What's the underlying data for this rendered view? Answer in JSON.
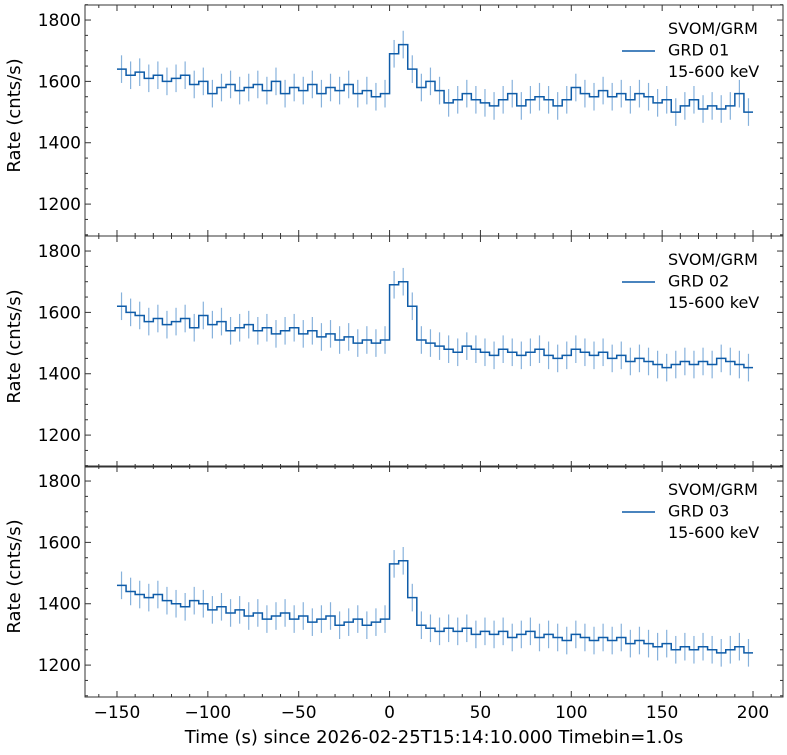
{
  "chart_data": {
    "type": "line",
    "style": "step with error bars",
    "xlabel": "Time (s) since 2026-02-25T15:14:10.000 Timebin=1.0s",
    "xlim": [
      -167.6,
      216.5
    ],
    "xticks": [
      -150,
      -100,
      -50,
      0,
      50,
      100,
      150,
      200
    ],
    "xtick_labels": [
      "−150",
      "−100",
      "−50",
      "0",
      "50",
      "100",
      "150",
      "200"
    ],
    "bin_width_s": 5,
    "x_start": -150,
    "line_color": "#0f5ca8",
    "errorbar_color": "#6a9fd4",
    "panels": [
      {
        "ylabel": "Rate (cnts/s)",
        "ylim": [
          1096,
          1849
        ],
        "yticks": [
          1200,
          1400,
          1600,
          1800
        ],
        "legend": {
          "position": "top-right",
          "lines": [
            "SVOM/GRM",
            "GRD 01",
            "15-600 keV"
          ]
        },
        "values": [
          1640,
          1620,
          1630,
          1610,
          1620,
          1600,
          1610,
          1620,
          1590,
          1600,
          1560,
          1580,
          1590,
          1570,
          1580,
          1590,
          1570,
          1600,
          1560,
          1580,
          1570,
          1590,
          1560,
          1580,
          1570,
          1590,
          1560,
          1570,
          1550,
          1560,
          1690,
          1720,
          1640,
          1580,
          1600,
          1570,
          1530,
          1540,
          1560,
          1540,
          1530,
          1520,
          1540,
          1560,
          1520,
          1540,
          1550,
          1540,
          1520,
          1540,
          1580,
          1560,
          1550,
          1570,
          1550,
          1560,
          1540,
          1560,
          1550,
          1530,
          1540,
          1500,
          1520,
          1540,
          1510,
          1520,
          1510,
          1520,
          1560,
          1500
        ]
      },
      {
        "ylabel": "Rate (cnts/s)",
        "ylim": [
          1096,
          1849
        ],
        "yticks": [
          1200,
          1400,
          1600,
          1800
        ],
        "legend": {
          "position": "top-right",
          "lines": [
            "SVOM/GRM",
            "GRD 02",
            "15-600 keV"
          ]
        },
        "values": [
          1620,
          1600,
          1590,
          1570,
          1580,
          1560,
          1570,
          1580,
          1550,
          1590,
          1560,
          1570,
          1540,
          1550,
          1560,
          1540,
          1550,
          1530,
          1540,
          1550,
          1530,
          1540,
          1520,
          1530,
          1510,
          1520,
          1500,
          1510,
          1500,
          1510,
          1690,
          1700,
          1620,
          1510,
          1500,
          1490,
          1480,
          1470,
          1490,
          1480,
          1470,
          1460,
          1480,
          1470,
          1460,
          1470,
          1480,
          1460,
          1450,
          1460,
          1480,
          1470,
          1460,
          1470,
          1450,
          1460,
          1440,
          1450,
          1440,
          1430,
          1420,
          1430,
          1440,
          1430,
          1440,
          1430,
          1450,
          1440,
          1430,
          1420
        ]
      },
      {
        "ylabel": "Rate (cnts/s)",
        "ylim": [
          1096,
          1849
        ],
        "yticks": [
          1200,
          1400,
          1600,
          1800
        ],
        "legend": {
          "position": "top-right",
          "lines": [
            "SVOM/GRM",
            "GRD 03",
            "15-600 keV"
          ]
        },
        "values": [
          1460,
          1440,
          1430,
          1420,
          1430,
          1410,
          1400,
          1390,
          1410,
          1400,
          1380,
          1390,
          1370,
          1380,
          1360,
          1370,
          1350,
          1360,
          1370,
          1350,
          1360,
          1340,
          1350,
          1360,
          1330,
          1340,
          1350,
          1330,
          1340,
          1350,
          1530,
          1540,
          1420,
          1330,
          1320,
          1310,
          1320,
          1310,
          1320,
          1300,
          1310,
          1300,
          1310,
          1290,
          1300,
          1310,
          1290,
          1300,
          1290,
          1280,
          1300,
          1290,
          1280,
          1290,
          1280,
          1290,
          1270,
          1280,
          1270,
          1260,
          1270,
          1250,
          1260,
          1250,
          1260,
          1250,
          1240,
          1250,
          1260,
          1240
        ]
      }
    ]
  }
}
